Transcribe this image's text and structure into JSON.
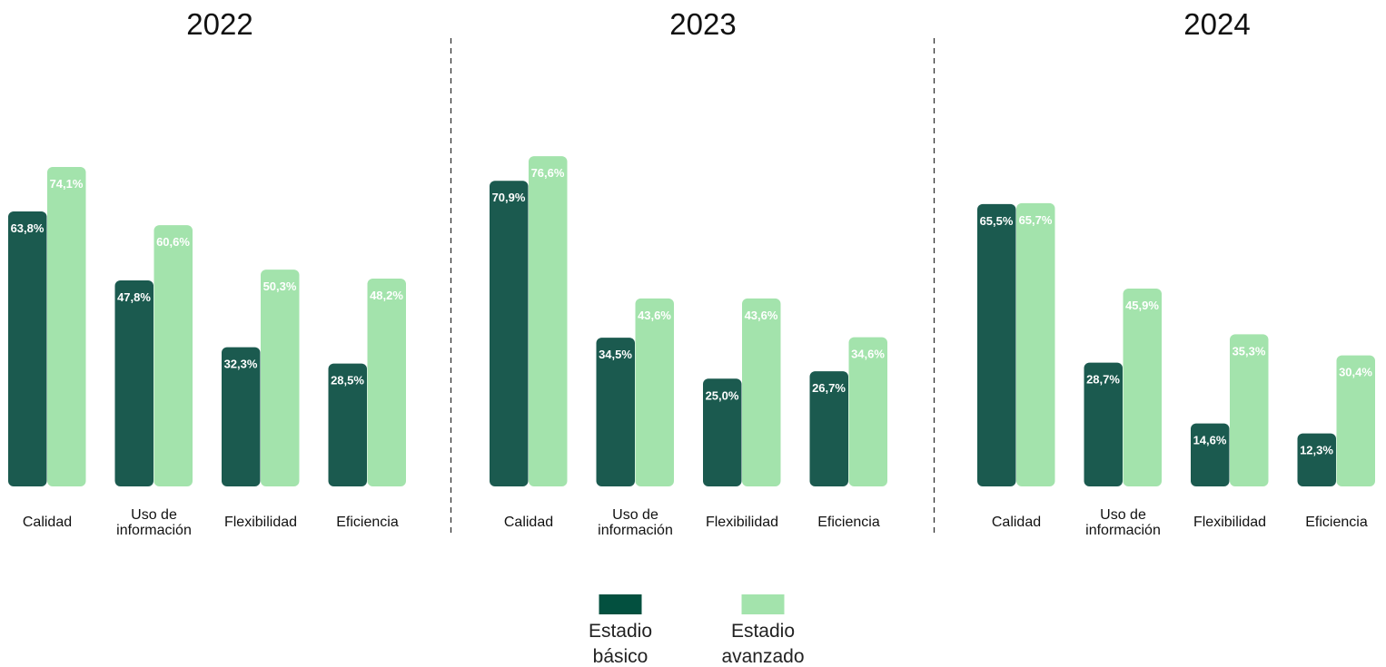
{
  "chart_data": [
    {
      "type": "bar",
      "title": "2022",
      "categories": [
        [
          "Calidad"
        ],
        [
          "Uso de",
          "información"
        ],
        [
          "Flexibilidad"
        ],
        [
          "Eficiencia"
        ]
      ],
      "series": [
        {
          "name": "Estadio básico",
          "values": [
            63.8,
            47.8,
            32.3,
            28.5
          ],
          "labels": [
            "63,8%",
            "47,8%",
            "32,3%",
            "28,5%"
          ]
        },
        {
          "name": "Estadio avanzado",
          "values": [
            74.1,
            60.6,
            50.3,
            48.2
          ],
          "labels": [
            "74,1%",
            "60,6%",
            "50,3%",
            "48,2%"
          ]
        }
      ],
      "ylim": [
        0,
        100
      ]
    },
    {
      "type": "bar",
      "title": "2023",
      "categories": [
        [
          "Calidad"
        ],
        [
          "Uso de",
          "información"
        ],
        [
          "Flexibilidad"
        ],
        [
          "Eficiencia"
        ]
      ],
      "series": [
        {
          "name": "Estadio básico",
          "values": [
            70.9,
            34.5,
            25.0,
            26.7
          ],
          "labels": [
            "70,9%",
            "34,5%",
            "25,0%",
            "26,7%"
          ]
        },
        {
          "name": "Estadio avanzado",
          "values": [
            76.6,
            43.6,
            43.6,
            34.6
          ],
          "labels": [
            "76,6%",
            "43,6%",
            "43,6%",
            "34,6%"
          ]
        }
      ],
      "ylim": [
        0,
        100
      ]
    },
    {
      "type": "bar",
      "title": "2024",
      "categories": [
        [
          "Calidad"
        ],
        [
          "Uso de",
          "información"
        ],
        [
          "Flexibilidad"
        ],
        [
          "Eficiencia"
        ]
      ],
      "series": [
        {
          "name": "Estadio básico",
          "values": [
            65.5,
            28.7,
            14.6,
            12.3
          ],
          "labels": [
            "65,5%",
            "28,7%",
            "14,6%",
            "12,3%"
          ]
        },
        {
          "name": "Estadio avanzado",
          "values": [
            65.7,
            45.9,
            35.3,
            30.4
          ],
          "labels": [
            "65,7%",
            "45,9%",
            "35,3%",
            "30,4%"
          ]
        }
      ],
      "ylim": [
        0,
        100
      ]
    }
  ],
  "legend": {
    "items": [
      {
        "lines": [
          "Estadio",
          "básico"
        ],
        "color": "#03503F"
      },
      {
        "lines": [
          "Estadio",
          "avanzado"
        ],
        "color": "#A3E3AC"
      }
    ]
  },
  "colors": {
    "basic_bar": "#1B5A4F",
    "advanced_bar": "#A3E3AC",
    "divider": "#333333"
  }
}
